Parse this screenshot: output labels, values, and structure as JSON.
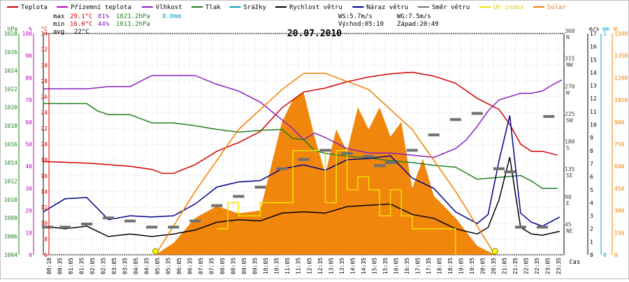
{
  "chart_data": {
    "type": "line",
    "title": "20.07.2010",
    "xlabel": "čas",
    "legend_placement": "top",
    "legend": [
      {
        "name": "Teplota",
        "color": "#d40000"
      },
      {
        "name": "Přízemní teplota",
        "color": "#c000c0"
      },
      {
        "name": "Vlhkost",
        "color": "#8a1fc0"
      },
      {
        "name": "Tlak",
        "color": "#208020"
      },
      {
        "name": "Srážky",
        "color": "#00a0c8"
      },
      {
        "name": "Rychlost větru",
        "color": "#000000"
      },
      {
        "name": "Náraz větru",
        "color": "#00008c"
      },
      {
        "name": "Směr větru",
        "color": "#707070"
      },
      {
        "name": "UV index",
        "color": "#f0e000"
      },
      {
        "name": "Solar",
        "color": "#f08000"
      }
    ],
    "stats": {
      "max_label": "max",
      "max_temp": "29.1°C",
      "max_hum": "81%",
      "max_press": "1021.2hPa",
      "rain": "0.0mm",
      "min_label": "min",
      "min_temp": "16.0°C",
      "min_hum": "44%",
      "min_press": "1011.2hPa",
      "avg_label": "avg",
      "avg_temp": "22°C",
      "ws": "WS:5.7m/s",
      "wg": "WG:7.5m/s",
      "sunrise": "Východ:05:10",
      "sunset": "Západ:20:49"
    },
    "axes": {
      "hpa": {
        "unit": "hPa",
        "ticks": [
          "1004",
          "1006",
          "1008",
          "1010",
          "1012",
          "1014",
          "1016",
          "1018",
          "1020",
          "1022",
          "1024",
          "1026",
          "1028"
        ],
        "range": [
          1004,
          1028
        ]
      },
      "pct": {
        "unit": "%",
        "ticks": [
          "0",
          "10",
          "20",
          "30",
          "40",
          "50",
          "60",
          "70",
          "80",
          "90",
          "100"
        ],
        "range": [
          0,
          100
        ]
      },
      "temp": {
        "unit": "°C",
        "ticks": [
          "6",
          "8",
          "10",
          "12",
          "14",
          "16",
          "18",
          "20",
          "22",
          "24",
          "26",
          "28",
          "30",
          "32",
          "34"
        ],
        "range": [
          6,
          34
        ]
      },
      "dir": {
        "ticks": [
          {
            "v": "45",
            "l": "NE"
          },
          {
            "v": "90",
            "l": "E"
          },
          {
            "v": "135",
            "l": "SE"
          },
          {
            "v": "180",
            "l": "S"
          },
          {
            "v": "225",
            "l": "SW"
          },
          {
            "v": "270",
            "l": "W"
          },
          {
            "v": "315",
            "l": "NW"
          },
          {
            "v": "360",
            "l": "N"
          }
        ]
      },
      "ms": {
        "unit": "m/s",
        "ticks": [
          "0",
          "1",
          "2",
          "3",
          "4",
          "5",
          "6",
          "7",
          "8",
          "9",
          "10",
          "11",
          "12",
          "13",
          "14",
          "15",
          "16",
          "17"
        ],
        "range": [
          0,
          17
        ]
      },
      "mm": {
        "unit": "mm",
        "ticks": [
          "0",
          "1"
        ],
        "range": [
          0,
          1
        ]
      },
      "w": {
        "unit": "W",
        "ticks": [
          "0",
          "150",
          "300",
          "450",
          "600",
          "750",
          "900",
          "1050",
          "1200",
          "1350",
          "1500"
        ],
        "range": [
          0,
          1500
        ]
      },
      "x_ticks": [
        "00:10",
        "00:35",
        "01:05",
        "01:35",
        "02:05",
        "02:35",
        "03:05",
        "03:35",
        "04:05",
        "04:35",
        "05:05",
        "05:35",
        "06:05",
        "06:35",
        "07:05",
        "07:35",
        "08:05",
        "08:35",
        "09:05",
        "09:35",
        "10:05",
        "10:35",
        "11:05",
        "11:35",
        "12:05",
        "12:35",
        "13:05",
        "13:35",
        "14:05",
        "14:35",
        "15:05",
        "15:35",
        "16:05",
        "16:35",
        "17:05",
        "17:35",
        "18:05",
        "18:35",
        "19:05",
        "19:35",
        "20:05",
        "20:35",
        "21:05",
        "21:35",
        "22:05",
        "22:35",
        "23:05",
        "23:35"
      ]
    },
    "series": [
      {
        "name": "Teplota",
        "unit": "°C",
        "x_hours": [
          0,
          1,
          2,
          3,
          4,
          5,
          5.5,
          6,
          7,
          8,
          9,
          10,
          11,
          12,
          13,
          14,
          15,
          16,
          17,
          18,
          19,
          20,
          21,
          21.5,
          22,
          22.5,
          23,
          23.7
        ],
        "values": [
          17.8,
          17.7,
          17.6,
          17.4,
          17.2,
          16.8,
          16.3,
          16.3,
          17.4,
          19.1,
          20.2,
          21.6,
          24.6,
          26.6,
          27.1,
          27.9,
          28.5,
          28.9,
          29.1,
          28.6,
          27.7,
          25.8,
          24.4,
          22.5,
          20.0,
          19.1,
          19.1,
          18.6
        ]
      },
      {
        "name": "Vlhkost",
        "unit": "%",
        "x_hours": [
          0,
          1,
          2,
          3,
          4,
          5,
          6,
          7,
          8,
          9,
          10,
          11,
          11.5,
          12,
          12.5,
          13,
          14,
          15,
          16,
          17,
          18,
          19,
          19.5,
          20,
          20.5,
          21,
          22,
          22.5,
          23,
          23.5,
          23.9
        ],
        "values": [
          75,
          75,
          75,
          76,
          76,
          81,
          81,
          81,
          77,
          74,
          69,
          61,
          57,
          52,
          55,
          53,
          48,
          46,
          46,
          45,
          44,
          48,
          52,
          58,
          65,
          70,
          73,
          73,
          74,
          77,
          79
        ]
      },
      {
        "name": "Tlak",
        "unit": "hPa",
        "x_hours": [
          0,
          1,
          2,
          2.5,
          3,
          4,
          5,
          6,
          7,
          8,
          9,
          10,
          11,
          11.5,
          12,
          12.5,
          13,
          14,
          15,
          16,
          17,
          18,
          19,
          20,
          20.5,
          21,
          22,
          22.5,
          23,
          23.7
        ],
        "values": [
          1020.4,
          1020.4,
          1020.4,
          1019.6,
          1019.2,
          1019.2,
          1018.3,
          1018.3,
          1018.0,
          1017.6,
          1017.3,
          1017.5,
          1017.6,
          1016.6,
          1016.5,
          1015.3,
          1015.0,
          1014.7,
          1014.5,
          1014.2,
          1014.0,
          1013.7,
          1013.5,
          1012.2,
          1012.3,
          1012.4,
          1012.6,
          1012.0,
          1011.2,
          1011.2
        ]
      },
      {
        "name": "Rychlost větru",
        "unit": "m/s",
        "x_hours": [
          0,
          1,
          2,
          3,
          4,
          5,
          6,
          7,
          8,
          9,
          10,
          11,
          12,
          13,
          14,
          15,
          16,
          17,
          18,
          19,
          20,
          20.5,
          21,
          21.5,
          22,
          22.5,
          23,
          23.8
        ],
        "values": [
          2.2,
          2.0,
          2.2,
          1.4,
          1.6,
          1.4,
          1.6,
          1.9,
          2.5,
          2.7,
          2.6,
          3.2,
          3.3,
          3.2,
          3.7,
          3.8,
          3.9,
          3.1,
          2.8,
          2.0,
          1.6,
          2.1,
          4.2,
          7.5,
          2.1,
          1.6,
          1.5,
          1.8
        ]
      },
      {
        "name": "Náraz větru",
        "unit": "m/s",
        "x_hours": [
          0,
          1,
          2,
          3,
          4,
          5,
          6,
          7,
          8,
          9,
          10,
          11,
          12,
          13,
          14,
          15,
          16,
          17,
          18,
          19,
          20,
          20.5,
          21,
          21.5,
          22,
          22.5,
          23,
          23.8
        ],
        "values": [
          3.3,
          4.3,
          4.4,
          2.7,
          3.0,
          2.9,
          3.0,
          3.9,
          5.2,
          5.6,
          5.7,
          6.6,
          6.9,
          6.5,
          7.3,
          7.4,
          7.6,
          5.9,
          5.1,
          3.3,
          2.4,
          3.1,
          7.2,
          10.7,
          3.2,
          2.5,
          2.2,
          2.9
        ]
      },
      {
        "name": "Solar",
        "unit": "W",
        "x_hours": [
          5.17,
          6,
          7,
          8,
          9,
          10,
          11,
          11.5,
          12,
          12.5,
          13,
          13.5,
          14,
          14.5,
          15,
          15.5,
          16,
          16.5,
          17,
          17.5,
          18,
          19,
          20,
          20.82
        ],
        "values": [
          0,
          80,
          250,
          330,
          280,
          300,
          900,
          1050,
          1100,
          800,
          550,
          850,
          700,
          1000,
          850,
          1000,
          800,
          900,
          450,
          650,
          400,
          250,
          60,
          0
        ]
      },
      {
        "name": "Solar",
        "unit": "W",
        "x_hours": [
          5.17,
          7,
          9,
          11,
          12,
          13,
          15,
          17,
          19,
          20.82
        ],
        "values": [
          0,
          430,
          850,
          1120,
          1230,
          1230,
          1120,
          850,
          430,
          0
        ]
      },
      {
        "name": "UV index",
        "unit": "m/s",
        "x_hours": [
          8,
          8.5,
          9,
          10,
          11,
          11.5,
          12,
          13,
          13.5,
          14,
          14.5,
          15,
          15.5,
          16,
          16.5,
          17,
          18,
          19
        ],
        "values": [
          2,
          4,
          3,
          4,
          4,
          8,
          8,
          4,
          8,
          5,
          6,
          5,
          3,
          5,
          3,
          2,
          2,
          0
        ]
      },
      {
        "name": "Směr větru",
        "unit": "°",
        "x_hours": [
          0.2,
          1,
          2,
          3,
          4,
          5,
          6,
          7,
          8,
          9,
          10,
          11,
          12,
          13,
          14,
          15,
          15.5,
          16,
          17,
          18,
          19,
          20,
          21,
          21.5,
          22,
          23,
          23.3
        ],
        "values": [
          45,
          45,
          50,
          60,
          55,
          45,
          45,
          55,
          80,
          95,
          110,
          140,
          155,
          170,
          165,
          160,
          145,
          150,
          170,
          195,
          220,
          230,
          140,
          135,
          45,
          45,
          225
        ]
      }
    ]
  }
}
